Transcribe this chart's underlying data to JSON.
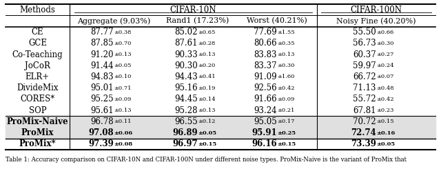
{
  "subheader": [
    "Aggregate (9.03%)",
    "Rand1 (17.23%)",
    "Worst (40.21%)",
    "Noisy Fine (40.20%)"
  ],
  "methods": [
    "CE",
    "GCE",
    "Co-Teaching",
    "JoCoR",
    "ELR+",
    "DivideMix",
    "CORES*",
    "SOP",
    "ProMix-Naive",
    "ProMix",
    "ProMix*"
  ],
  "bold_methods": [
    "ProMix-Naive",
    "ProMix",
    "ProMix*"
  ],
  "data": [
    [
      "87.77",
      "0.38",
      "85.02",
      "0.65",
      "77.69",
      "1.55",
      "55.50",
      "0.66"
    ],
    [
      "87.85",
      "0.70",
      "87.61",
      "0.28",
      "80.66",
      "0.35",
      "56.73",
      "0.30"
    ],
    [
      "91.20",
      "0.13",
      "90.33",
      "0.13",
      "83.83",
      "0.13",
      "60.37",
      "0.27"
    ],
    [
      "91.44",
      "0.05",
      "90.30",
      "0.20",
      "83.37",
      "0.30",
      "59.97",
      "0.24"
    ],
    [
      "94.83",
      "0.10",
      "94.43",
      "0.41",
      "91.09",
      "1.60",
      "66.72",
      "0.07"
    ],
    [
      "95.01",
      "0.71",
      "95.16",
      "0.19",
      "92.56",
      "0.42",
      "71.13",
      "0.48"
    ],
    [
      "95.25",
      "0.09",
      "94.45",
      "0.14",
      "91.66",
      "0.09",
      "55.72",
      "0.42"
    ],
    [
      "95.61",
      "0.13",
      "95.28",
      "0.13",
      "93.24",
      "0.21",
      "67.81",
      "0.23"
    ],
    [
      "96.78",
      "0.11",
      "96.55",
      "0.12",
      "95.05",
      "0.17",
      "70.72",
      "0.15"
    ],
    [
      "97.08",
      "0.06",
      "96.89",
      "0.05",
      "95.91",
      "0.25",
      "72.74",
      "0.16"
    ],
    [
      "97.39",
      "0.08",
      "96.97",
      "0.15",
      "96.16",
      "0.15",
      "73.39",
      "0.05"
    ]
  ],
  "bold_data": [
    false,
    false,
    false,
    false,
    false,
    false,
    false,
    false,
    false,
    true,
    true
  ],
  "shaded_rows": [
    8,
    9
  ],
  "bg_color_shaded": "#e0e0e0",
  "font_size": 8.5,
  "caption": "Table 1: Accuracy comparison on CIFAR-10N and CIFAR-100N under different noise types. ProMix-Naive is the variant of ProMix that"
}
